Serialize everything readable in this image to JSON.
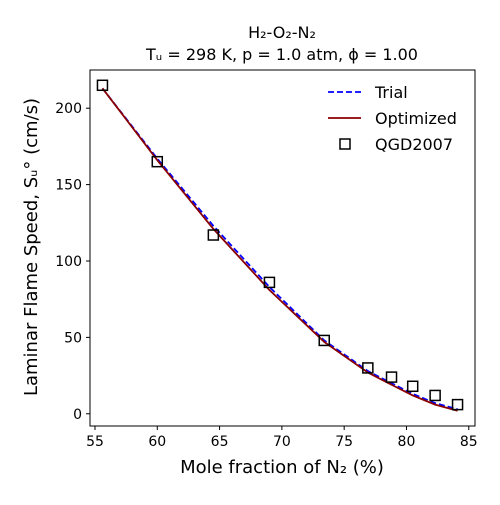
{
  "chart_data": {
    "type": "line",
    "title_line1": "H₂-O₂-N₂",
    "title_line2": "Tᵤ = 298 K, p = 1.0 atm, ϕ = 1.00",
    "xlabel": "Mole fraction of N₂ (%)",
    "ylabel": "Laminar Flame Speed, Sᵤ° (cm/s)",
    "xlim": [
      54.6,
      85.5
    ],
    "ylim": [
      -8,
      225
    ],
    "xticks": [
      55,
      60,
      65,
      70,
      75,
      80,
      85
    ],
    "yticks": [
      0,
      50,
      100,
      150,
      200
    ],
    "grid": false,
    "legend_position": "top-right",
    "series": [
      {
        "name": "Trial",
        "style": "dashed",
        "color": "#0000ff",
        "x": [
          55.6,
          60.0,
          64.5,
          69.0,
          73.4,
          76.9,
          78.8,
          80.5,
          82.3,
          84.1
        ],
        "y": [
          213,
          167,
          123,
          83,
          48,
          28,
          20,
          13,
          7,
          3
        ]
      },
      {
        "name": "Optimized",
        "style": "solid",
        "color": "#8b0000",
        "x": [
          55.6,
          60.0,
          64.5,
          69.0,
          73.4,
          76.9,
          78.8,
          80.5,
          82.3,
          84.1
        ],
        "y": [
          213,
          166,
          121,
          81,
          47,
          27,
          19,
          12,
          6,
          2
        ]
      },
      {
        "name": "QGD2007",
        "style": "marker",
        "marker": "square",
        "color": "#000000",
        "x": [
          55.6,
          60.0,
          64.5,
          69.0,
          73.4,
          76.9,
          78.8,
          80.5,
          82.3,
          84.1
        ],
        "y": [
          215,
          165,
          117,
          86,
          48,
          30,
          24,
          18,
          12,
          6
        ]
      }
    ]
  }
}
